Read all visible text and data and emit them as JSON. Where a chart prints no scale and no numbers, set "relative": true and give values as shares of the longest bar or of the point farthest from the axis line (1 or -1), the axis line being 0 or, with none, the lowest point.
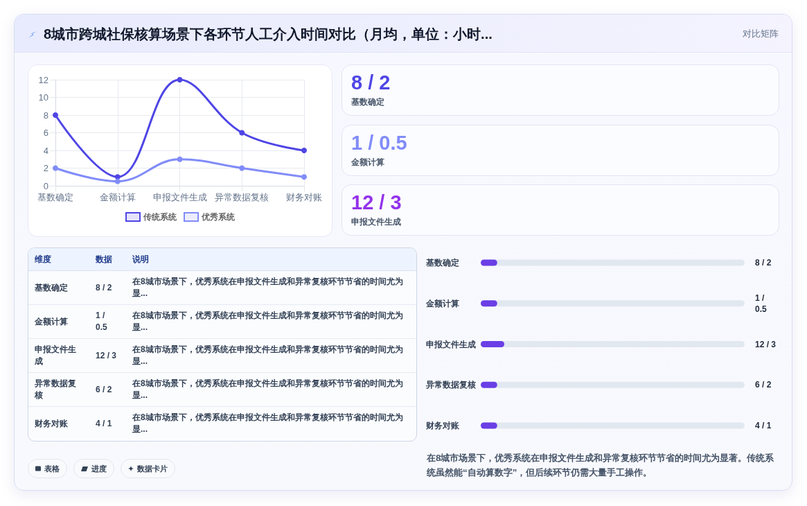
{
  "chart_data": [
    {
      "type": "line",
      "title": "8城市跨城社保核算场景下各环节人工介入时间对比（月均，单位：小时...",
      "categories": [
        "基数确定",
        "金额计算",
        "申报文件生成",
        "异常数据复核",
        "财务对账"
      ],
      "series": [
        {
          "name": "传统系统",
          "color": "#4f46e5",
          "values": [
            8,
            1,
            12,
            6,
            4
          ]
        },
        {
          "name": "优秀系统",
          "color": "#818cf8",
          "values": [
            2,
            0.5,
            3,
            2,
            1
          ]
        }
      ],
      "ylim": [
        0,
        12
      ],
      "yticks": [
        0,
        2,
        4,
        6,
        8,
        10,
        12
      ],
      "grid": true,
      "legend": "bottom",
      "marker": "circle",
      "line_style": "solid",
      "annotations": [
        "对比矩阵",
        "表格",
        "进度",
        "数据卡片",
        "在8城市场景下，优秀系统在申报文件生成和异常复核环节节省的时间尤为显著。传统系统虽然能“自动算数字”，但后续环节仍需大量手工操作。"
      ]
    },
    {
      "type": "other",
      "categories": [
        "基数确定",
        "金额计算",
        "申报文件生成"
      ],
      "value_labels": [
        "8 / 2",
        "1 / 0.5",
        "12 / 3"
      ]
    },
    {
      "type": "other",
      "categories": [
        "基数确定",
        "金额计算",
        "申报文件生成",
        "异常数据复核",
        "财务对账"
      ],
      "value_labels": [
        "8 / 2",
        "1 / 0.5",
        "12 / 3",
        "6 / 2",
        "4 / 1"
      ],
      "annotations": [
        "维度",
        "数据",
        "说明",
        "在8城市场景下，优秀系统在申报文件生成和异常复核环节节省的时间尤为显...",
        "在8城市场景下，优秀系统在申报文件生成和异常复核环节节省的时间尤为显...",
        "在8城市场景下，优秀系统在申报文件生成和异常复核环节节省的时间尤为显...",
        "在8城市场景下，优秀系统在申报文件生成和异常复核环节节省的时间尤为显...",
        "在8城市场景下，优秀系统在申报文件生成和异常复核环节节省的时间尤为显..."
      ]
    },
    {
      "type": "bar",
      "orientation": "horizontal",
      "relative": true,
      "categories": [
        "基数确定",
        "金额计算",
        "申报文件生成",
        "异常数据复核",
        "财务对账"
      ],
      "values": [
        0.7,
        0.7,
        1,
        0.7,
        0.7
      ],
      "annotations": [
        "8 / 2",
        "1 / 0.5",
        "12 / 3",
        "6 / 2",
        "4 / 1"
      ],
      "color": "#6a3fe6"
    }
  ]
}
